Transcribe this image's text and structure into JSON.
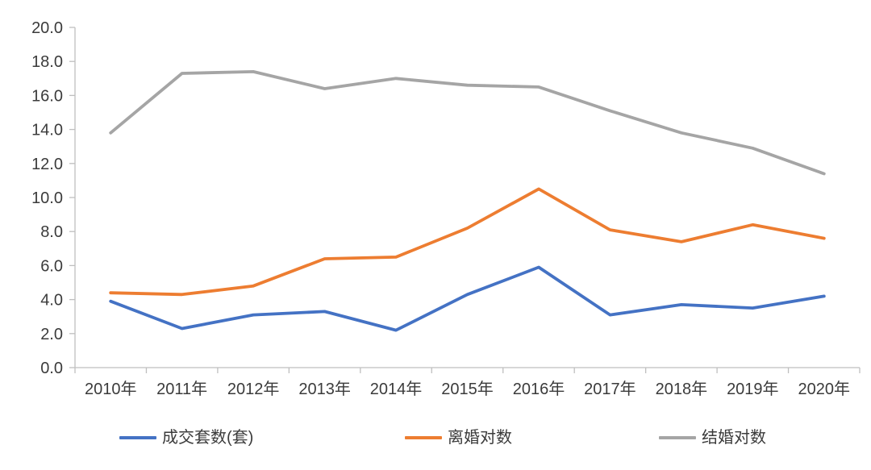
{
  "chart_data": {
    "type": "line",
    "categories": [
      "2010年",
      "2011年",
      "2012年",
      "2013年",
      "2014年",
      "2015年",
      "2016年",
      "2017年",
      "2018年",
      "2019年",
      "2020年"
    ],
    "series": [
      {
        "name": "成交套数(套)",
        "color": "#4472C4",
        "values": [
          3.9,
          2.3,
          3.1,
          3.3,
          2.2,
          4.3,
          5.9,
          3.1,
          3.7,
          3.5,
          4.2
        ]
      },
      {
        "name": "离婚对数",
        "color": "#ED7D31",
        "values": [
          4.4,
          4.3,
          4.8,
          6.4,
          6.5,
          8.2,
          10.5,
          8.1,
          7.4,
          8.4,
          7.6
        ]
      },
      {
        "name": "结婚对数",
        "color": "#A5A5A5",
        "values": [
          13.8,
          17.3,
          17.4,
          16.4,
          17.0,
          16.6,
          16.5,
          15.1,
          13.8,
          12.9,
          11.4
        ]
      }
    ],
    "title": "",
    "xlabel": "",
    "ylabel": "",
    "ylim": [
      0,
      20
    ],
    "ytick_step": 2,
    "ytick_labels": [
      "0.0",
      "2.0",
      "4.0",
      "6.0",
      "8.0",
      "10.0",
      "12.0",
      "14.0",
      "16.0",
      "18.0",
      "20.0"
    ],
    "grid": false,
    "legend_position": "bottom"
  },
  "colors": {
    "axis": "#BFBFBF",
    "text": "#3b3b3b",
    "background": "#FFFFFF"
  }
}
